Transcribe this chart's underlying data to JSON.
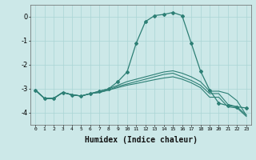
{
  "xlabel": "Humidex (Indice chaleur)",
  "ylabel": "",
  "bg_color": "#cce8e8",
  "grid_color": "#aad4d4",
  "line_color": "#2d7f75",
  "x_ticks": [
    0,
    1,
    2,
    3,
    4,
    5,
    6,
    7,
    8,
    9,
    10,
    11,
    12,
    13,
    14,
    15,
    16,
    17,
    18,
    19,
    20,
    21,
    22,
    23
  ],
  "ylim": [
    -4.5,
    0.5
  ],
  "xlim": [
    -0.5,
    23.5
  ],
  "yticks": [
    0,
    -1,
    -2,
    -3,
    -4
  ],
  "series": [
    {
      "x": [
        0,
        1,
        2,
        3,
        4,
        5,
        6,
        7,
        8,
        9,
        10,
        11,
        12,
        13,
        14,
        15,
        16,
        17,
        18,
        19,
        20,
        21,
        22,
        23
      ],
      "y": [
        -3.05,
        -3.4,
        -3.4,
        -3.15,
        -3.25,
        -3.3,
        -3.2,
        -3.1,
        -3.0,
        -2.7,
        -2.3,
        -1.1,
        -0.2,
        0.05,
        0.1,
        0.18,
        0.05,
        -1.1,
        -2.25,
        -3.05,
        -3.6,
        -3.7,
        -3.75,
        -3.8
      ],
      "marker": "D",
      "markersize": 2.0,
      "linewidth": 0.9
    },
    {
      "x": [
        0,
        1,
        2,
        3,
        4,
        5,
        6,
        7,
        8,
        9,
        10,
        11,
        12,
        13,
        14,
        15,
        16,
        17,
        18,
        19,
        20,
        21,
        22,
        23
      ],
      "y": [
        -3.05,
        -3.4,
        -3.4,
        -3.15,
        -3.25,
        -3.3,
        -3.2,
        -3.1,
        -3.0,
        -2.85,
        -2.7,
        -2.6,
        -2.5,
        -2.4,
        -2.3,
        -2.25,
        -2.35,
        -2.5,
        -2.7,
        -3.1,
        -3.1,
        -3.2,
        -3.5,
        -4.1
      ],
      "marker": null,
      "markersize": 0,
      "linewidth": 0.8
    },
    {
      "x": [
        0,
        1,
        2,
        3,
        4,
        5,
        6,
        7,
        8,
        9,
        10,
        11,
        12,
        13,
        14,
        15,
        16,
        17,
        18,
        19,
        20,
        21,
        22,
        23
      ],
      "y": [
        -3.05,
        -3.4,
        -3.4,
        -3.15,
        -3.25,
        -3.3,
        -3.2,
        -3.15,
        -3.05,
        -2.9,
        -2.8,
        -2.7,
        -2.6,
        -2.5,
        -2.4,
        -2.35,
        -2.5,
        -2.65,
        -2.85,
        -3.2,
        -3.2,
        -3.65,
        -3.75,
        -4.1
      ],
      "marker": null,
      "markersize": 0,
      "linewidth": 0.8
    },
    {
      "x": [
        0,
        1,
        2,
        3,
        4,
        5,
        6,
        7,
        8,
        9,
        10,
        11,
        12,
        13,
        14,
        15,
        16,
        17,
        18,
        19,
        20,
        21,
        22,
        23
      ],
      "y": [
        -3.05,
        -3.4,
        -3.4,
        -3.15,
        -3.25,
        -3.3,
        -3.2,
        -3.15,
        -3.05,
        -2.95,
        -2.85,
        -2.78,
        -2.7,
        -2.62,
        -2.55,
        -2.5,
        -2.6,
        -2.75,
        -2.95,
        -3.35,
        -3.35,
        -3.75,
        -3.8,
        -4.15
      ],
      "marker": null,
      "markersize": 0,
      "linewidth": 0.8
    }
  ]
}
